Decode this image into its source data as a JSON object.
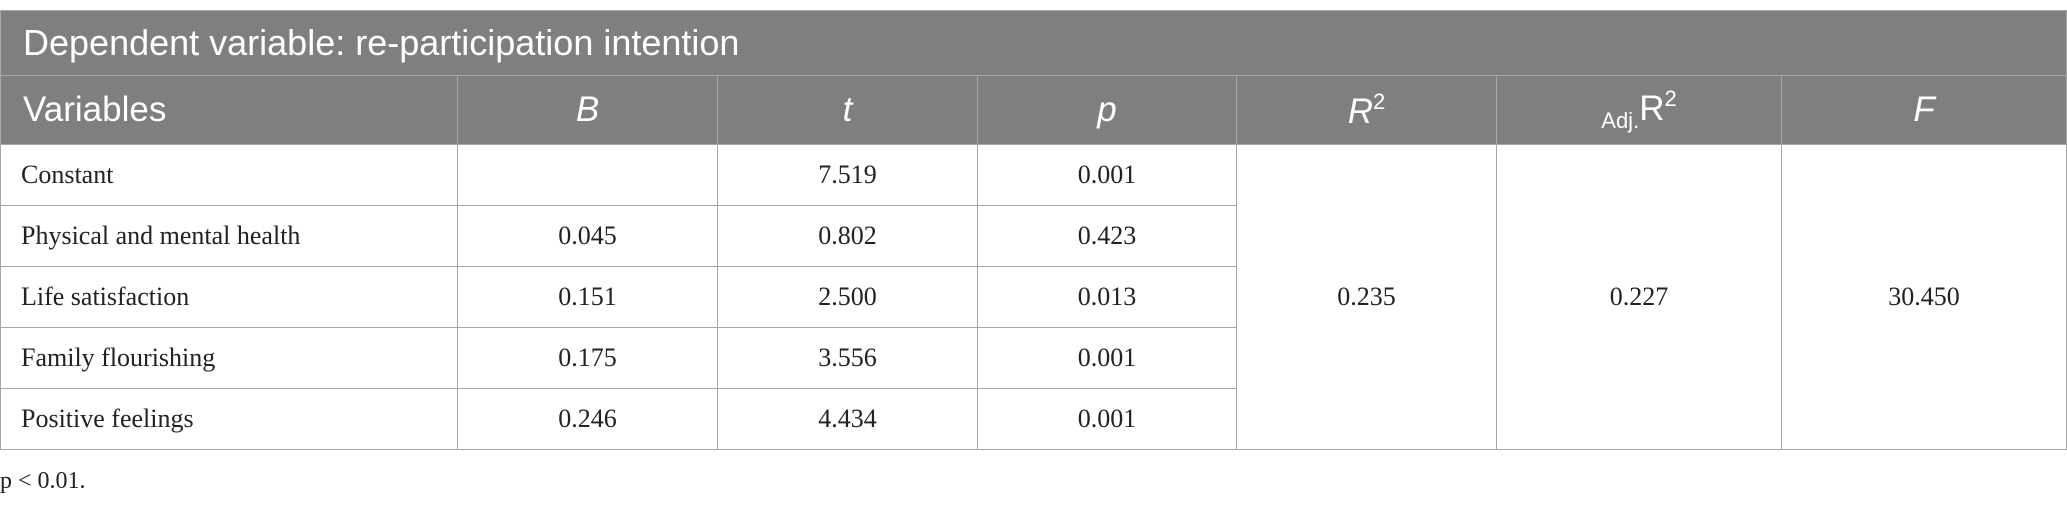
{
  "table": {
    "title": "Dependent variable: re-participation intention",
    "headers": [
      {
        "text": "Variables"
      },
      {
        "text": "B"
      },
      {
        "text": "t"
      },
      {
        "text": "p"
      },
      {
        "text": "R",
        "sup": "2"
      },
      {
        "sub": "Adj.",
        "text": "R",
        "sup": "2"
      },
      {
        "text": "F"
      }
    ],
    "rows": [
      [
        "Constant",
        null,
        "7.519",
        "0.001"
      ],
      [
        "Physical and mental health",
        "0.045",
        "0.802",
        "0.423"
      ],
      [
        "Life satisfaction",
        "0.151",
        "2.500",
        "0.013"
      ],
      [
        "Family flourishing",
        "0.175",
        "3.556",
        "0.001"
      ],
      [
        "Positive feelings",
        "0.246",
        "4.434",
        "0.001"
      ]
    ],
    "model": [
      "0.235",
      "0.227",
      "30.450"
    ],
    "footnote": "p < 0.01."
  }
}
